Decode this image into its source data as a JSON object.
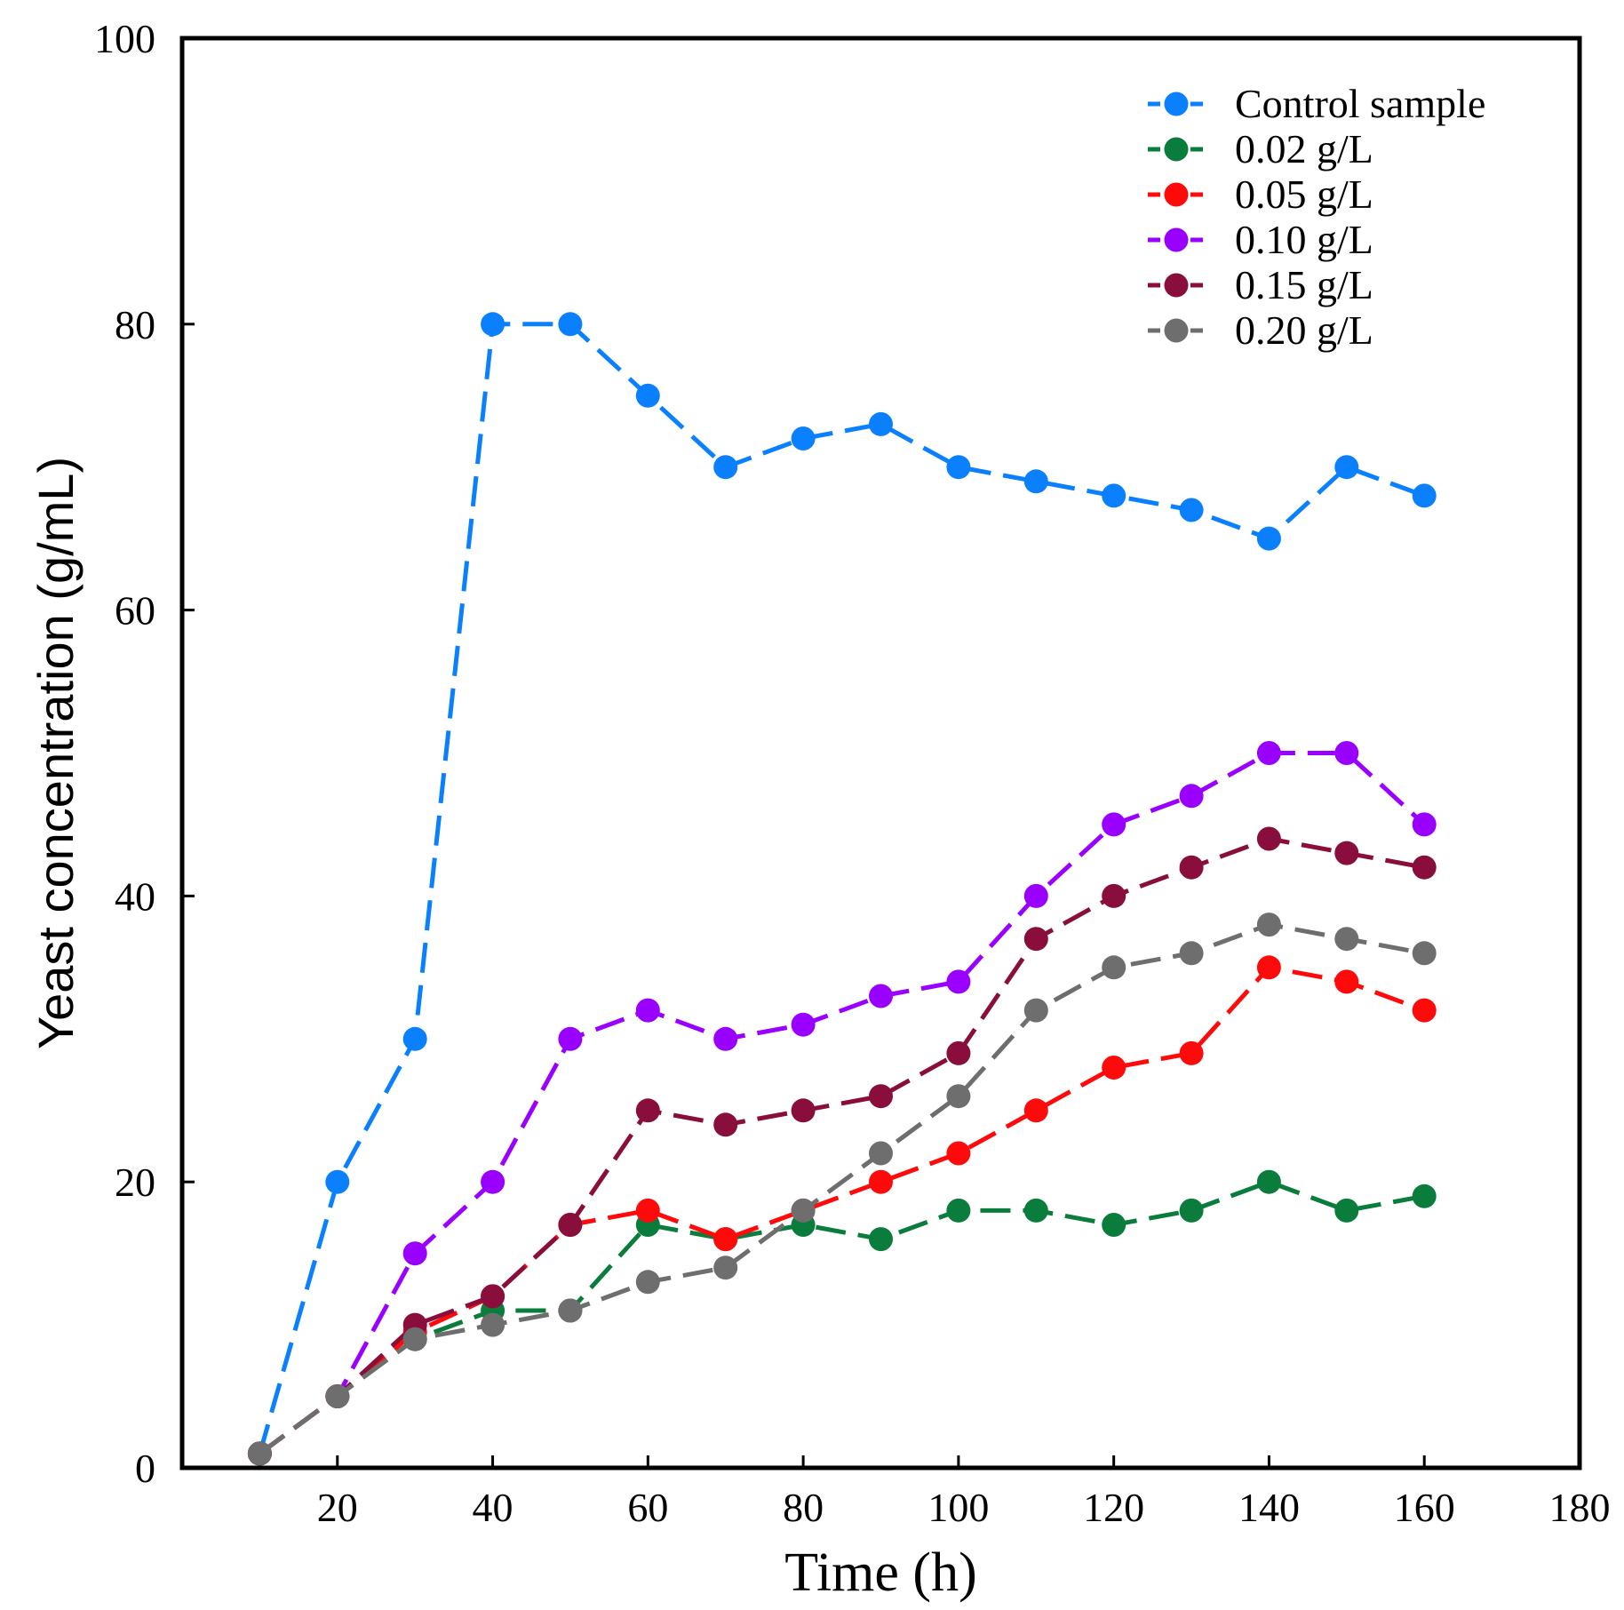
{
  "chart_data": {
    "type": "line",
    "title": "",
    "xlabel": "Time (h)",
    "ylabel": "Yeast concentration (g/mL)",
    "xlim": [
      0,
      180
    ],
    "ylim": [
      0,
      100
    ],
    "xticks": [
      20,
      40,
      60,
      80,
      100,
      120,
      140,
      160,
      180
    ],
    "yticks": [
      0,
      20,
      40,
      60,
      80,
      100
    ],
    "grid": false,
    "legend_position": "top-right",
    "x": [
      10,
      20,
      30,
      40,
      50,
      60,
      70,
      80,
      90,
      100,
      110,
      120,
      130,
      140,
      150,
      160
    ],
    "series": [
      {
        "name": "Control sample",
        "color": "#0a80ff",
        "values": [
          1,
          20,
          30,
          80,
          80,
          75,
          70,
          72,
          73,
          70,
          69,
          68,
          67,
          65,
          70,
          68
        ]
      },
      {
        "name": "0.02 g/L",
        "color": "#0a7d3c",
        "values": [
          1,
          5,
          9,
          11,
          11,
          17,
          16,
          17,
          16,
          18,
          18,
          17,
          18,
          20,
          18,
          19
        ]
      },
      {
        "name": "0.05 g/L",
        "color": "#ff0a0a",
        "values": [
          1,
          5,
          9.5,
          12,
          17,
          18,
          16,
          18,
          20,
          22,
          25,
          28,
          29,
          35,
          34,
          32
        ]
      },
      {
        "name": "0.10 g/L",
        "color": "#9900ff",
        "values": [
          1,
          5,
          15,
          20,
          30,
          32,
          30,
          31,
          33,
          34,
          40,
          45,
          47,
          50,
          50,
          45
        ]
      },
      {
        "name": "0.15 g/L",
        "color": "#8a0e3c",
        "values": [
          1,
          5,
          10,
          12,
          17,
          25,
          24,
          25,
          26,
          29,
          37,
          40,
          42,
          44,
          43,
          42
        ]
      },
      {
        "name": "0.20 g/L",
        "color": "#6e6e6e",
        "values": [
          1,
          5,
          9,
          10,
          11,
          13,
          14,
          18,
          22,
          26,
          32,
          35,
          36,
          38,
          37,
          36
        ]
      }
    ]
  }
}
